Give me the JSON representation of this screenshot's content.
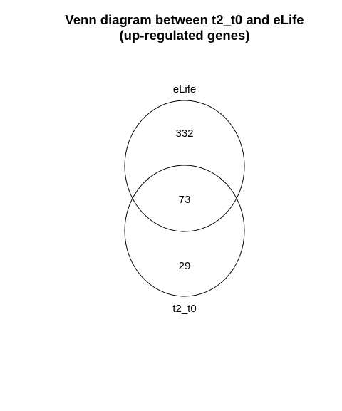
{
  "title": {
    "line1": "Venn diagram between t2_t0 and eLife",
    "line2": "(up-regulated genes)"
  },
  "venn": {
    "sets": [
      {
        "id": "top",
        "label": "eLife"
      },
      {
        "id": "bottom",
        "label": "t2_t0"
      }
    ],
    "counts": {
      "elife_only": "332",
      "intersection": "73",
      "t2_t0_only": "29"
    }
  }
}
